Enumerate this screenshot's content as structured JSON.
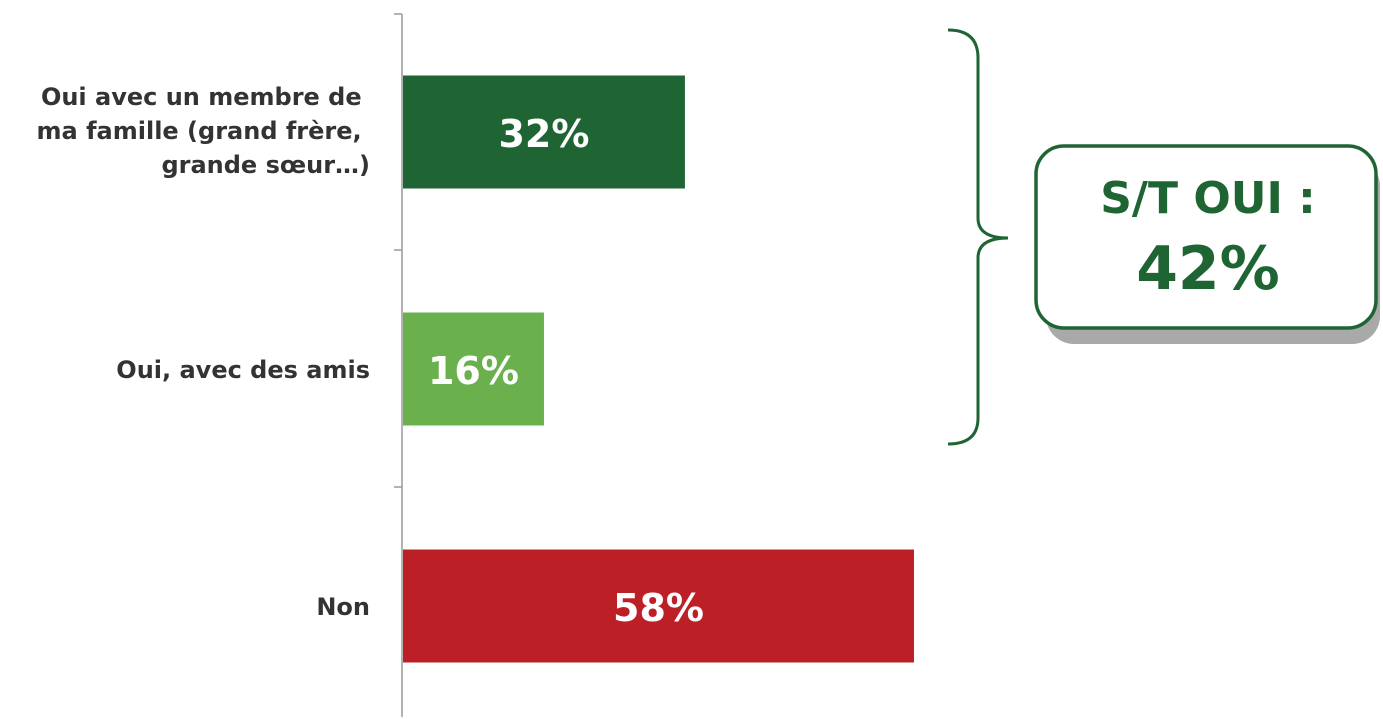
{
  "chart_data": {
    "type": "bar",
    "orientation": "horizontal",
    "categories": [
      "Oui avec un membre de ma famille (grand frère, grande sœur…)",
      "Oui, avec des amis",
      "Non"
    ],
    "category_lines": [
      [
        "Oui avec un membre de",
        "ma famille (grand frère,",
        "grande sœur…)"
      ],
      [
        "Oui, avec des amis"
      ],
      [
        "Non"
      ]
    ],
    "values": [
      32,
      16,
      58
    ],
    "value_labels": [
      "32%",
      "16%",
      "58%"
    ],
    "colors": [
      "#1e6533",
      "#6ab04c",
      "#bc1f26"
    ],
    "xlim": [
      0,
      100
    ],
    "grid": false,
    "annotation": {
      "line1": "S/T OUI :",
      "line2": "42%",
      "groups": [
        "Oui avec un membre de ma famille (grand frère, grande sœur…)",
        "Oui, avec des amis"
      ],
      "color": "#1e6533"
    }
  }
}
